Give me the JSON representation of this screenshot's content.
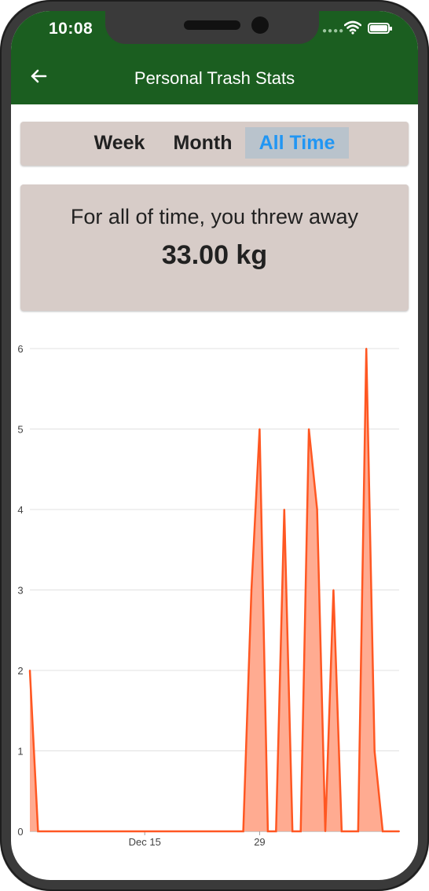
{
  "status_bar": {
    "time": "10:08",
    "signal_icon": "signal-icon",
    "wifi_icon": "wifi-icon",
    "battery_icon": "battery-icon"
  },
  "app_bar": {
    "title": "Personal Trash Stats",
    "back_icon": "back-arrow-icon",
    "background": "#1b5e20"
  },
  "tabs": [
    {
      "label": "Week",
      "selected": false
    },
    {
      "label": "Month",
      "selected": false
    },
    {
      "label": "All Time",
      "selected": true
    }
  ],
  "summary": {
    "caption": "For all of time, you threw away",
    "amount": "33.00 kg"
  },
  "colors": {
    "accent": "#2196f3",
    "line": "#ff5722",
    "area": "#ffab91",
    "card": "#d7ccc8"
  },
  "chart_data": {
    "type": "area",
    "x_tick_labels": [
      "Dec 15",
      "29"
    ],
    "y_ticks": [
      "0",
      "1",
      "2",
      "3",
      "4",
      "5",
      "6"
    ],
    "ylim": [
      0,
      6
    ],
    "grid": true,
    "x": [
      "2019-12-01",
      "2019-12-02",
      "2019-12-23",
      "2019-12-27",
      "2019-12-28",
      "2019-12-29",
      "2019-12-30",
      "2019-12-31",
      "2020-01-01",
      "2020-01-02",
      "2020-01-03",
      "2020-01-04",
      "2020-01-05",
      "2020-01-06",
      "2020-01-07",
      "2020-01-08",
      "2020-01-09",
      "2020-01-10",
      "2020-01-11",
      "2020-01-12",
      "2020-01-13",
      "2020-01-14",
      "2020-01-15"
    ],
    "values": [
      2,
      0,
      0,
      0,
      3,
      5,
      0,
      0,
      4,
      0,
      0,
      5,
      4,
      0,
      3,
      0,
      0,
      0,
      6,
      1,
      0,
      0,
      0
    ]
  }
}
